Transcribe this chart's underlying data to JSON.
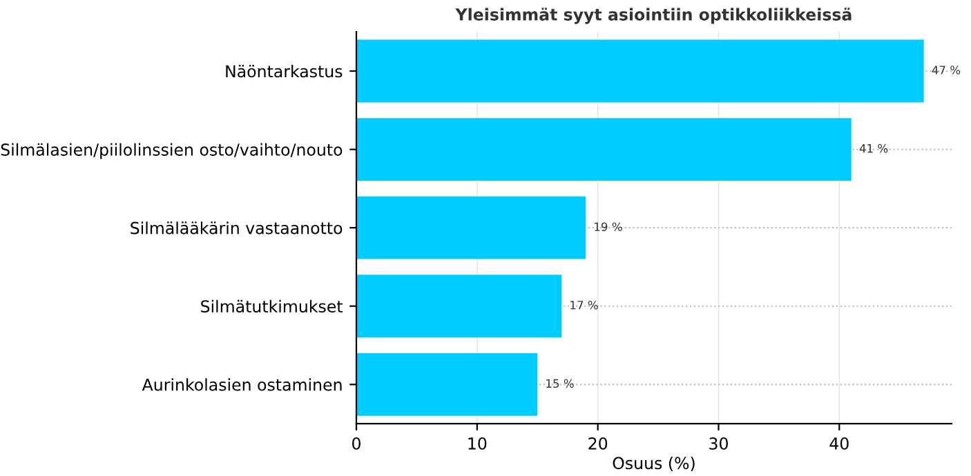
{
  "chart_data": {
    "type": "bar",
    "orientation": "horizontal",
    "title": "Yleisimmät syyt asiointiin optikkoliikkeissä",
    "xlabel": "Osuus (%)",
    "categories": [
      "Näöntarkastus",
      "Silmälasien/piilolinssien osto/vaihto/nouto",
      "Silmälääkärin vastaanotto",
      "Silmätutkimukset",
      "Aurinkolasien ostaminen"
    ],
    "values": [
      47,
      41,
      19,
      17,
      15
    ],
    "value_labels": [
      "47 %",
      "41 %",
      "19 %",
      "17 %",
      "15 %"
    ],
    "color": "#00ccff",
    "xlim": [
      0,
      49.3
    ],
    "xticks": [
      0,
      10,
      20,
      30,
      40
    ],
    "grid": true
  }
}
